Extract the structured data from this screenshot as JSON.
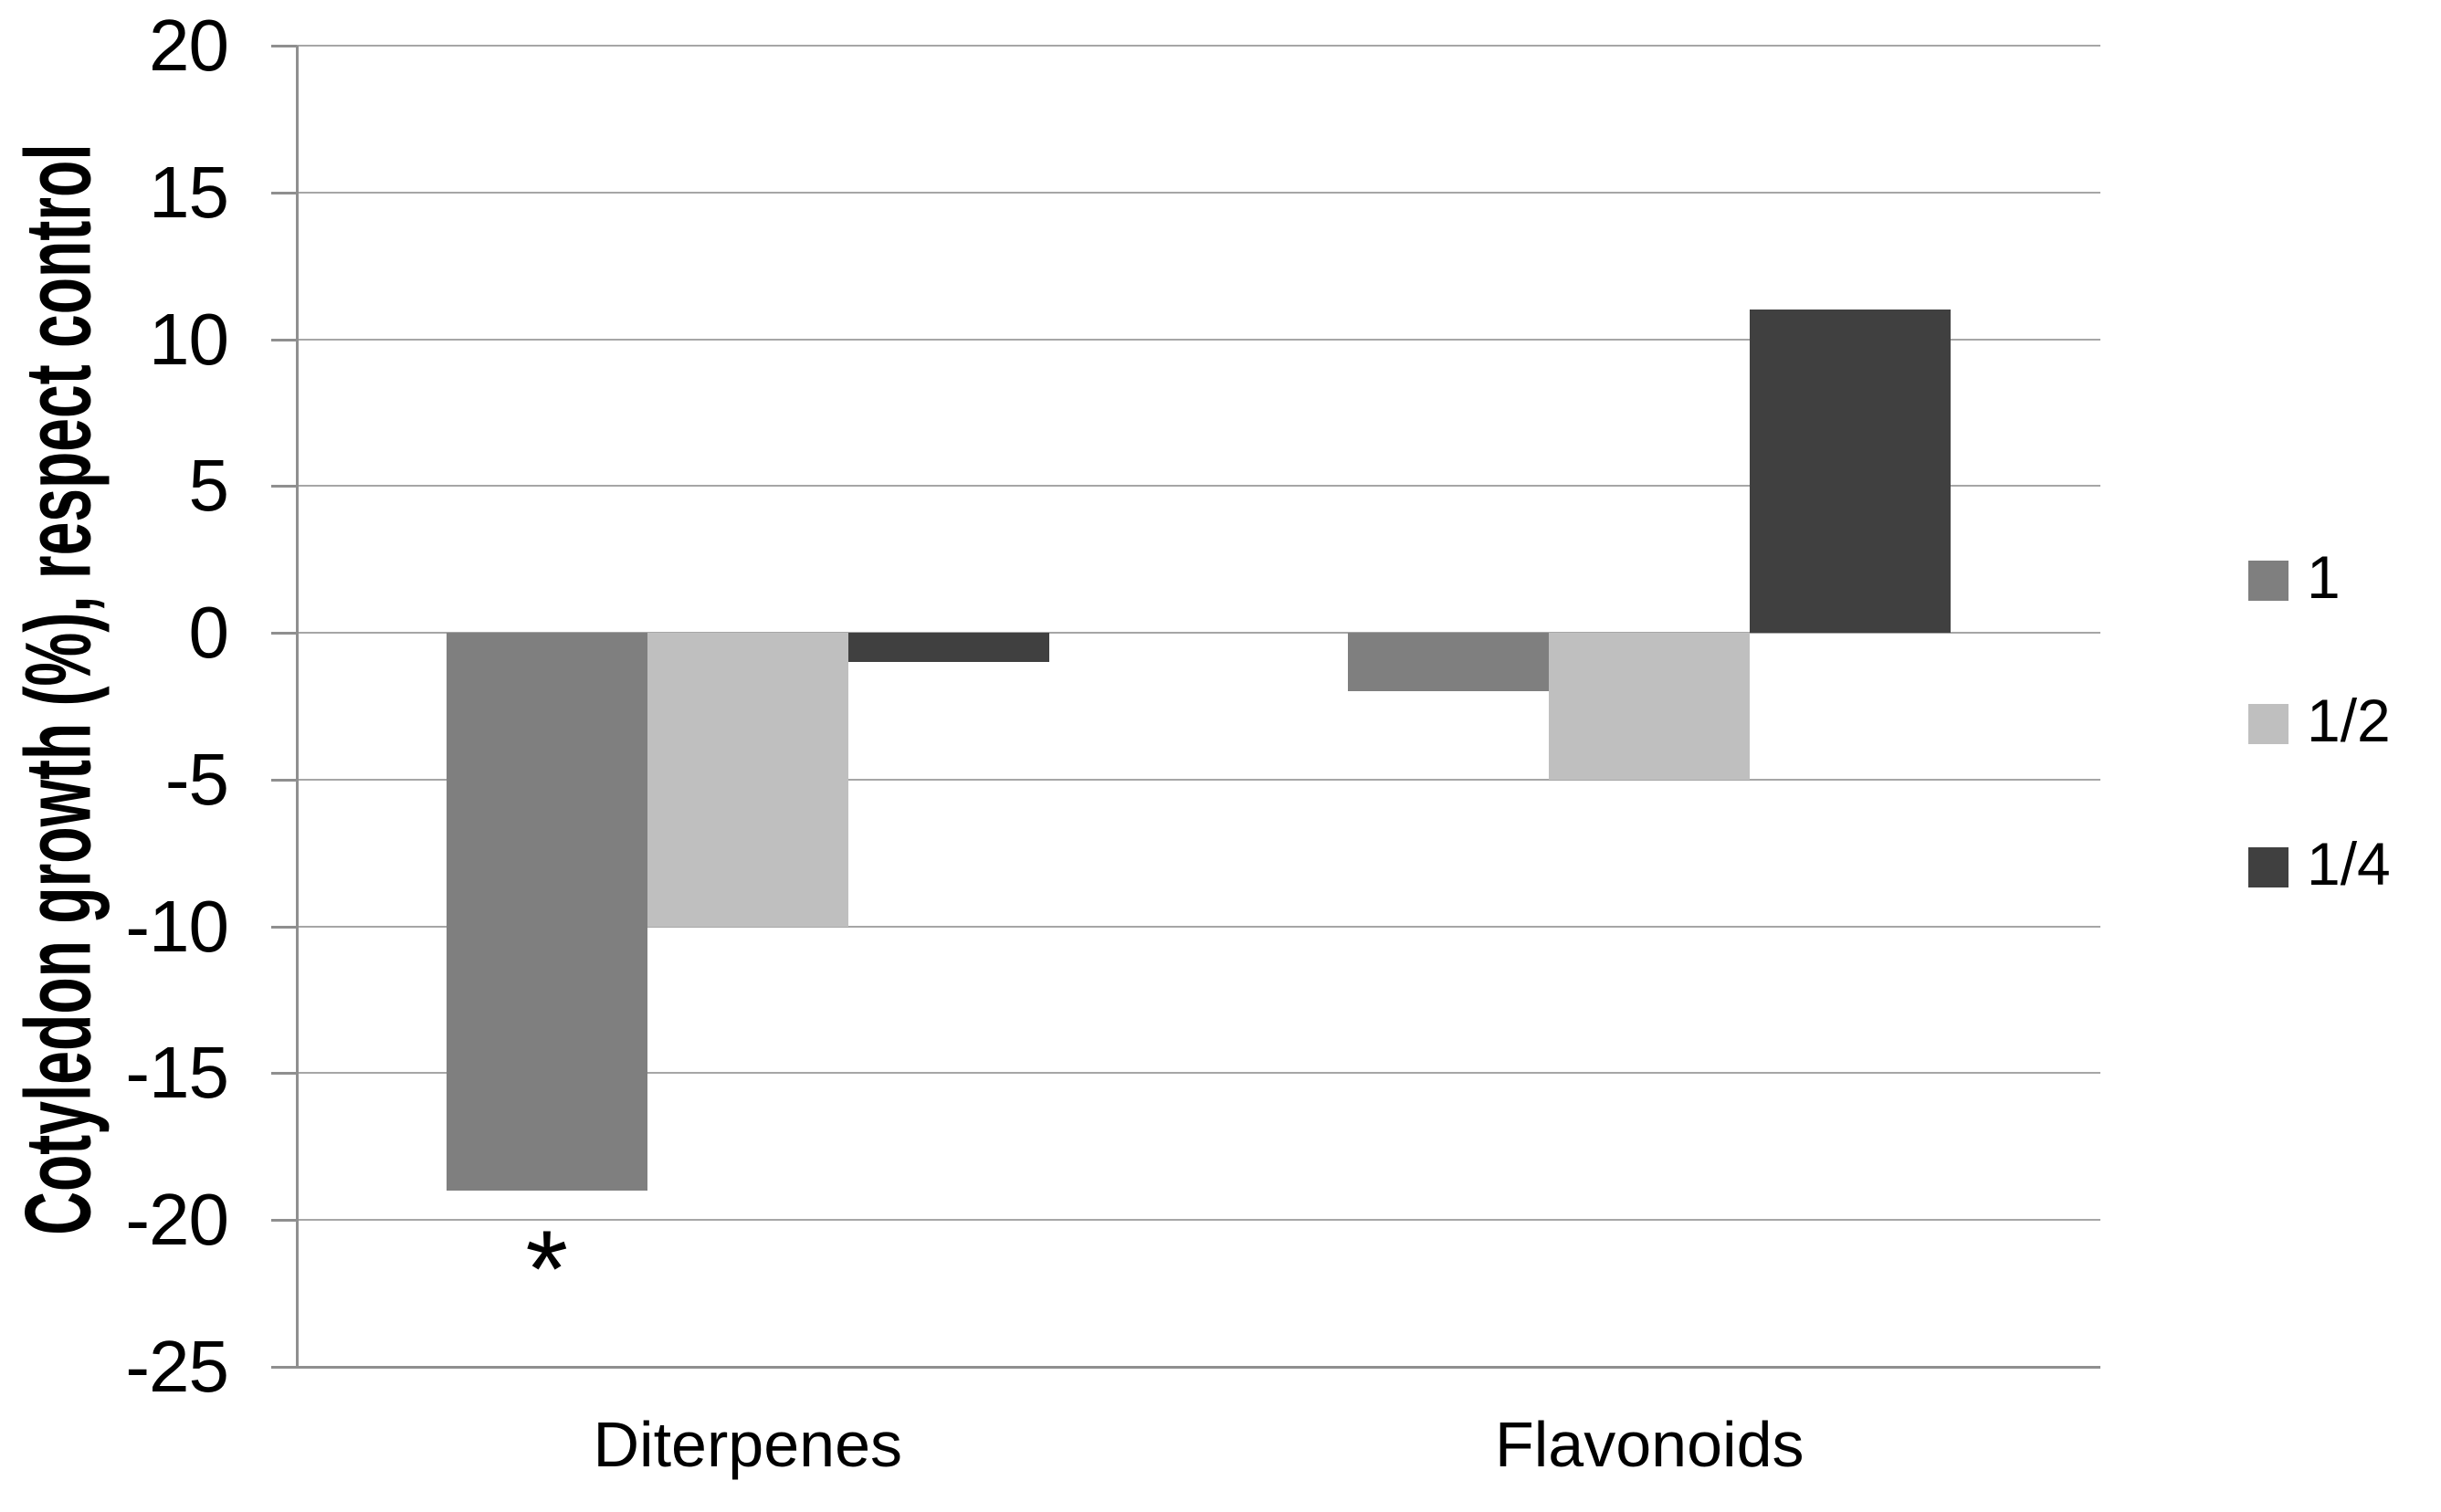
{
  "figure": {
    "background": "#ffffff",
    "text_color": "#000000",
    "gridline_color": "#a6a6a6",
    "axis_color": "#8f8f8f"
  },
  "chart_data": {
    "type": "bar",
    "title": "",
    "ylabel": "Cotyledon growth (%), respect control",
    "xlabel": "",
    "categories": [
      "Diterpenes",
      "Flavonoids"
    ],
    "series": [
      {
        "name": "1",
        "color": "#7f7f7f",
        "values": [
          -19,
          -2
        ]
      },
      {
        "name": "1/2",
        "color": "#bfbfbf",
        "values": [
          -10,
          -5
        ]
      },
      {
        "name": "1/4",
        "color": "#404040",
        "values": [
          -1,
          11
        ]
      }
    ],
    "ylim": [
      -25,
      20
    ],
    "ytick_step": 5,
    "ytick_labels": [
      "20",
      "15",
      "10",
      "5",
      "0",
      "-5",
      "-10",
      "-15",
      "-20",
      "-25"
    ],
    "grid": "horizontal",
    "legend_position": "right",
    "legend_entries": [
      "1",
      "1/2",
      "1/4"
    ],
    "annotations": [
      {
        "text": "*",
        "category": "Diterpenes",
        "series": "1",
        "value_at": -21
      }
    ]
  }
}
